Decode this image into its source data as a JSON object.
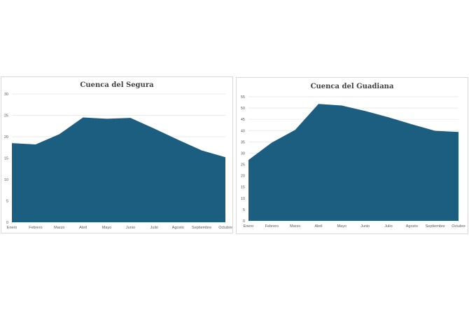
{
  "chart_data": [
    {
      "type": "area",
      "title": "Cuenca del Segura",
      "categories": [
        "Enero",
        "Febrero",
        "Marzo",
        "Abril",
        "Mayo",
        "Junio",
        "Julio",
        "Agosto",
        "Septiembre",
        "Octubre"
      ],
      "series": [
        {
          "values": [
            18.5,
            18.2,
            20.6,
            24.5,
            24.2,
            24.4,
            21.9,
            19.3,
            16.8,
            15.2
          ]
        }
      ],
      "ylim": [
        0,
        30
      ],
      "yticks": [
        0,
        5,
        10,
        15,
        20,
        25,
        30
      ],
      "grid": true,
      "fill_color": "#1b5e80"
    },
    {
      "type": "area",
      "title": "Cuenca del Guadiana",
      "categories": [
        "Enero",
        "Febrero",
        "Marzo",
        "Abril",
        "Mayo",
        "Junio",
        "Julio",
        "Agosto",
        "Septiembre",
        "Octubre"
      ],
      "series": [
        {
          "values": [
            27,
            34.7,
            40.3,
            51.8,
            51.1,
            48.7,
            45.9,
            42.8,
            39.9,
            39.4
          ]
        }
      ],
      "ylim": [
        0,
        55
      ],
      "yticks": [
        0,
        5,
        10,
        15,
        20,
        25,
        30,
        35,
        40,
        45,
        50,
        55
      ],
      "grid": true,
      "fill_color": "#1b5e80"
    }
  ]
}
